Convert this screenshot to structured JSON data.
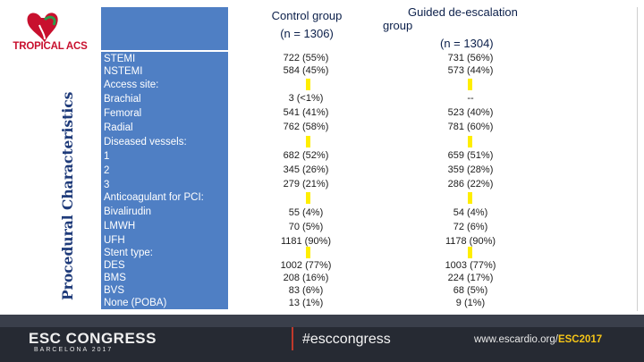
{
  "logo": {
    "text": "TROPICAL ACS"
  },
  "side_title": "Procedural Characteristics",
  "header": {
    "control_title": "Control group",
    "control_n": "(n = 1306)",
    "guided_title_1": "Guided de-escalation",
    "guided_title_2": "group",
    "guided_n": "(n = 1304)"
  },
  "rows": [
    {
      "label": "STEMI",
      "control": "722 (55%)",
      "guided": "731 (56%)"
    },
    {
      "label": "NSTEMI",
      "control": "584 (45%)",
      "guided": "573 (44%)"
    },
    {
      "label": "Access site:",
      "control": "",
      "guided": ""
    },
    {
      "label": "Brachial",
      "control": "3 (<1%)",
      "guided": "--"
    },
    {
      "label": "Femoral",
      "control": "541 (41%)",
      "guided": "523 (40%)"
    },
    {
      "label": "Radial",
      "control": "762 (58%)",
      "guided": "781 (60%)"
    },
    {
      "label": "Diseased vessels:",
      "control": "",
      "guided": ""
    },
    {
      "label": "1",
      "control": "682 (52%)",
      "guided": "659 (51%)"
    },
    {
      "label": "2",
      "control": "345 (26%)",
      "guided": "359 (28%)"
    },
    {
      "label": "3",
      "control": "279 (21%)",
      "guided": "286 (22%)"
    },
    {
      "label": "Anticoagulant for PCI:",
      "control": "",
      "guided": ""
    },
    {
      "label": "Bivalirudin",
      "control": "55 (4%)",
      "guided": "54 (4%)"
    },
    {
      "label": "LMWH",
      "control": "70 (5%)",
      "guided": "72 (6%)"
    },
    {
      "label": "UFH",
      "control": "1181 (90%)",
      "guided": "1178 (90%)"
    },
    {
      "label": "Stent type:",
      "control": "",
      "guided": ""
    },
    {
      "label": "DES",
      "control": "1002 (77%)",
      "guided": "1003 (77%)"
    },
    {
      "label": "BMS",
      "control": "208 (16%)",
      "guided": "224 (17%)"
    },
    {
      "label": "BVS",
      "control": "83 (6%)",
      "guided": "68 (5%)"
    },
    {
      "label": "None (POBA)",
      "control": "13 (1%)",
      "guided": "9 (1%)"
    }
  ],
  "footer": {
    "congress": "ESC CONGRESS",
    "location": "BARCELONA 2017",
    "hashtag": "#esccongress",
    "website_prefix": "www.escardio.org/",
    "website_suffix": "ESC2017"
  },
  "colors": {
    "table_blue": "#4f7fc4",
    "marker_yellow": "#ffee00",
    "footer_dark": "#262a33"
  }
}
